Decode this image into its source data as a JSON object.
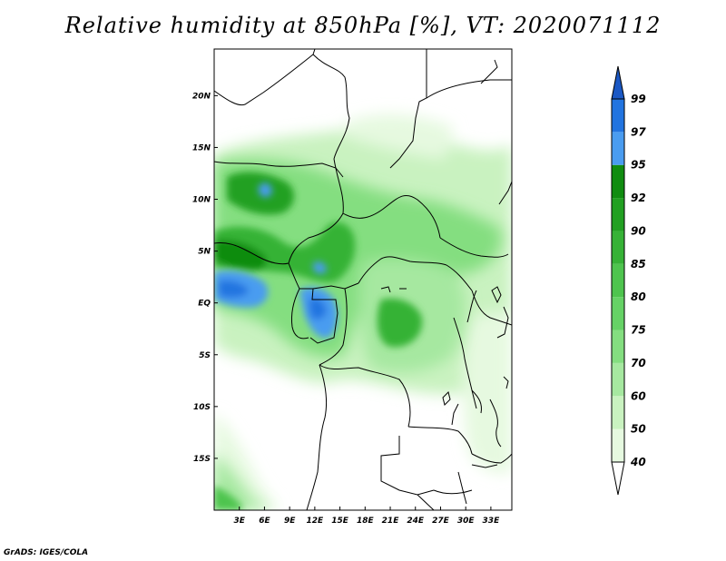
{
  "title": "Relative humidity at 850hPa [%], VT: 2020071112",
  "footer": "GrADS: IGES/COLA",
  "map": {
    "lat_labels": [
      "20N",
      "15N",
      "10N",
      "5N",
      "EQ",
      "5S",
      "10S",
      "15S"
    ],
    "lon_labels": [
      "3E",
      "6E",
      "9E",
      "12E",
      "15E",
      "18E",
      "21E",
      "24E",
      "27E",
      "30E",
      "33E"
    ],
    "lat_range": [
      -20,
      24.5
    ],
    "lon_range": [
      0,
      35.5
    ]
  },
  "colorbar": {
    "levels": [
      "40",
      "50",
      "60",
      "70",
      "75",
      "80",
      "85",
      "90",
      "92",
      "95",
      "97",
      "99"
    ],
    "colors": [
      "#ffffff",
      "#e6f9e0",
      "#c9f2c0",
      "#a6e8a0",
      "#84de80",
      "#66d266",
      "#4ec44e",
      "#36b236",
      "#22a022",
      "#108c10",
      "#4a9cf0",
      "#2274e0",
      "#1b58c4"
    ]
  }
}
